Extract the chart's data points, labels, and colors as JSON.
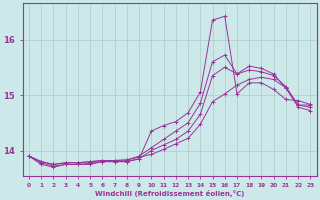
{
  "bg_color": "#cce8e8",
  "grid_color": "#aacccc",
  "line_color": "#993399",
  "xlabel": "Windchill (Refroidissement éolien,°C)",
  "xlim": [
    -0.5,
    23.5
  ],
  "ylim": [
    13.55,
    16.65
  ],
  "yticks": [
    14,
    15,
    16
  ],
  "xticks": [
    0,
    1,
    2,
    3,
    4,
    5,
    6,
    7,
    8,
    9,
    10,
    11,
    12,
    13,
    14,
    15,
    16,
    17,
    18,
    19,
    20,
    21,
    22,
    23
  ],
  "series": [
    [
      13.9,
      13.8,
      13.75,
      13.78,
      13.78,
      13.8,
      13.82,
      13.82,
      13.83,
      13.88,
      13.93,
      14.02,
      14.12,
      14.22,
      14.47,
      14.88,
      15.02,
      15.18,
      15.28,
      15.32,
      15.28,
      15.13,
      14.78,
      14.72
    ],
    [
      13.9,
      13.78,
      13.72,
      13.75,
      13.75,
      13.77,
      13.8,
      13.8,
      13.8,
      13.85,
      14.0,
      14.1,
      14.2,
      14.35,
      14.65,
      15.35,
      15.5,
      15.38,
      15.45,
      15.42,
      15.35,
      15.15,
      14.82,
      14.78
    ],
    [
      13.9,
      13.8,
      13.75,
      13.78,
      13.78,
      13.8,
      13.82,
      13.82,
      13.83,
      13.9,
      14.05,
      14.2,
      14.35,
      14.5,
      14.85,
      15.6,
      15.72,
      15.38,
      15.52,
      15.48,
      15.38,
      15.12,
      14.82,
      14.82
    ],
    [
      13.9,
      13.75,
      13.7,
      13.75,
      13.75,
      13.75,
      13.8,
      13.8,
      13.8,
      13.85,
      14.35,
      14.45,
      14.52,
      14.68,
      15.05,
      16.35,
      16.42,
      15.02,
      15.22,
      15.22,
      15.1,
      14.92,
      14.9,
      14.83
    ]
  ]
}
